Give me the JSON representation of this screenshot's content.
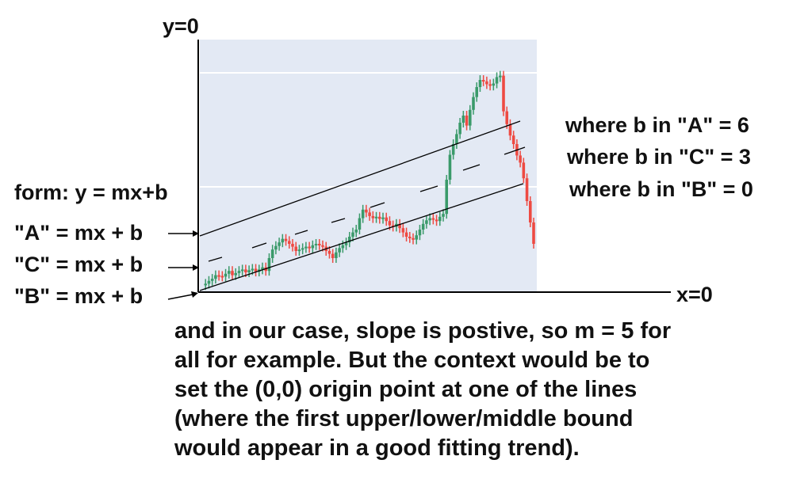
{
  "axes": {
    "y_label": "y=0",
    "x_label": "x=0"
  },
  "left_labels": {
    "form": "form: y = mx+b",
    "line_a": "\"A\" = mx + b",
    "line_c": "\"C\" = mx + b",
    "line_b": "\"B\" = mx + b"
  },
  "right_labels": {
    "b_a": "where b in \"A\" = 6",
    "b_c": "where b in \"C\" = 3",
    "b_b": "where b in \"B\" = 0"
  },
  "note_lines": [
    "and in our case, slope is postive, so m = 5 for",
    "all for example. But the context would be to",
    "set the (0,0) origin point at one of the lines",
    "(where the first upper/lower/middle bound",
    "would appear in a good fitting trend)."
  ],
  "colors": {
    "plot_background": "#e3e9f4",
    "gridline": "#ffffff",
    "up_candle": "#3a9a6a",
    "down_candle": "#ee4a42",
    "trendline": "#000000"
  },
  "price_series": [
    2,
    4,
    8,
    11,
    16,
    15,
    14,
    18,
    22,
    16,
    19,
    22,
    24,
    20,
    23,
    25,
    21,
    24,
    27,
    22,
    40,
    52,
    57,
    62,
    67,
    64,
    60,
    56,
    50,
    52,
    54,
    56,
    54,
    58,
    60,
    58,
    56,
    50,
    46,
    40,
    48,
    54,
    58,
    62,
    70,
    76,
    80,
    96,
    108,
    104,
    99,
    96,
    98,
    95,
    97,
    92,
    86,
    84,
    88,
    82,
    76,
    70,
    68,
    66,
    72,
    80,
    88,
    93,
    96,
    94,
    92,
    98,
    102,
    150,
    185,
    200,
    214,
    230,
    240,
    226,
    248,
    266,
    280,
    290,
    288,
    284,
    282,
    285,
    294,
    296,
    246,
    228,
    212,
    200,
    184,
    174,
    152,
    120,
    90,
    60
  ],
  "trend_lines": [
    {
      "name": "A",
      "b": 6
    },
    {
      "name": "C",
      "b": 3
    },
    {
      "name": "B",
      "b": 0
    }
  ],
  "slope_m": 5
}
